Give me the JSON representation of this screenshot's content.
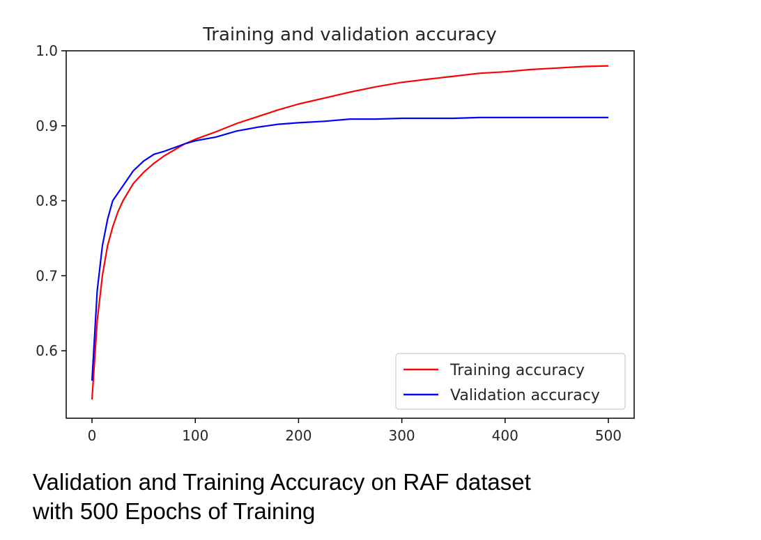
{
  "caption": {
    "line1": "Validation and Training Accuracy on RAF dataset",
    "line2": "with 500 Epochs of Training"
  },
  "chart_data": {
    "type": "line",
    "title": "Training and validation accuracy",
    "xlabel": "",
    "ylabel": "",
    "xlim": [
      -25,
      525
    ],
    "ylim": [
      0.51,
      1.0
    ],
    "xticks": [
      0,
      100,
      200,
      300,
      400,
      500
    ],
    "yticks": [
      0.6,
      0.7,
      0.8,
      0.9,
      1.0
    ],
    "xtick_labels": [
      "0",
      "100",
      "200",
      "300",
      "400",
      "500"
    ],
    "ytick_labels": [
      "0.6",
      "0.7",
      "0.8",
      "0.9",
      "1.0"
    ],
    "grid": false,
    "legend_position": "lower-right",
    "series": [
      {
        "name": "Training accuracy",
        "color": "#ff0000",
        "x": [
          0,
          5,
          10,
          15,
          20,
          25,
          30,
          40,
          50,
          60,
          70,
          80,
          90,
          100,
          120,
          140,
          160,
          180,
          200,
          225,
          250,
          275,
          300,
          325,
          350,
          375,
          400,
          425,
          450,
          475,
          500
        ],
        "y": [
          0.535,
          0.64,
          0.7,
          0.74,
          0.765,
          0.785,
          0.8,
          0.823,
          0.838,
          0.85,
          0.86,
          0.868,
          0.876,
          0.882,
          0.892,
          0.903,
          0.912,
          0.921,
          0.929,
          0.937,
          0.945,
          0.952,
          0.958,
          0.962,
          0.966,
          0.97,
          0.972,
          0.975,
          0.977,
          0.979,
          0.98
        ]
      },
      {
        "name": "Validation accuracy",
        "color": "#0000ff",
        "x": [
          0,
          5,
          10,
          15,
          20,
          25,
          30,
          40,
          50,
          60,
          70,
          80,
          90,
          100,
          120,
          140,
          160,
          180,
          200,
          225,
          250,
          275,
          300,
          325,
          350,
          375,
          400,
          425,
          450,
          475,
          500
        ],
        "y": [
          0.56,
          0.68,
          0.74,
          0.775,
          0.8,
          0.81,
          0.82,
          0.84,
          0.853,
          0.862,
          0.866,
          0.871,
          0.876,
          0.88,
          0.885,
          0.893,
          0.898,
          0.902,
          0.904,
          0.906,
          0.909,
          0.909,
          0.91,
          0.91,
          0.91,
          0.911,
          0.911,
          0.911,
          0.911,
          0.911,
          0.911
        ]
      }
    ]
  }
}
